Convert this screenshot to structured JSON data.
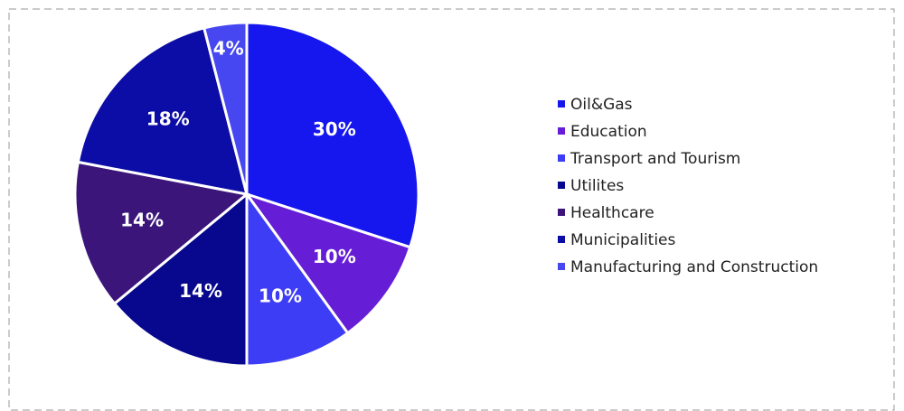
{
  "chart_data": {
    "type": "pie",
    "categories": [
      "Oil&Gas",
      "Education",
      "Transport and Tourism",
      "Utilites",
      "Healthcare",
      "Municipalities",
      "Manufacturing and Construction"
    ],
    "values": [
      30,
      10,
      10,
      14,
      14,
      18,
      4
    ],
    "value_labels": [
      "30%",
      "10%",
      "10%",
      "14%",
      "14%",
      "18%",
      "4%"
    ],
    "colors": [
      "#1616ee",
      "#651ed6",
      "#3d3df6",
      "#08088e",
      "#3b1579",
      "#0c0ca6",
      "#4747f2"
    ],
    "legend": "right"
  }
}
